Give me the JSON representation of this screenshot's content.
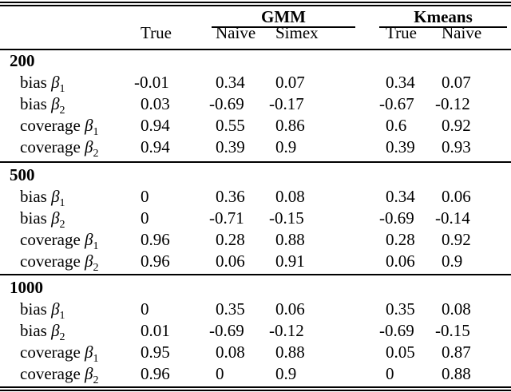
{
  "colors": {
    "background": "#ffffff",
    "text": "#000000",
    "rule": "#000000"
  },
  "table": {
    "header": {
      "groups": [
        {
          "label": "GMM"
        },
        {
          "label": "Kmeans"
        }
      ],
      "subcolumns": [
        "True",
        "Naive",
        "Simex",
        "True",
        "Naive"
      ]
    },
    "sections": [
      {
        "title": "200",
        "rows": [
          {
            "metric": "bias",
            "symbol": "β",
            "subscript": "1",
            "values": [
              "-0.01",
              "0.34",
              "0.07",
              "0.34",
              "0.07"
            ]
          },
          {
            "metric": "bias",
            "symbol": "β",
            "subscript": "2",
            "values": [
              "0.03",
              "-0.69",
              "-0.17",
              "-0.67",
              "-0.12"
            ]
          },
          {
            "metric": "coverage",
            "symbol": "β",
            "subscript": "1",
            "values": [
              "0.94",
              "0.55",
              "0.86",
              "0.6",
              "0.92"
            ]
          },
          {
            "metric": "coverage",
            "symbol": "β",
            "subscript": "2",
            "values": [
              "0.94",
              "0.39",
              "0.9",
              "0.39",
              "0.93"
            ]
          }
        ]
      },
      {
        "title": "500",
        "rows": [
          {
            "metric": "bias",
            "symbol": "β",
            "subscript": "1",
            "values": [
              "0",
              "0.36",
              "0.08",
              "0.34",
              "0.06"
            ]
          },
          {
            "metric": "bias",
            "symbol": "β",
            "subscript": "2",
            "values": [
              "0",
              "-0.71",
              "-0.15",
              "-0.69",
              "-0.14"
            ]
          },
          {
            "metric": "coverage",
            "symbol": "β",
            "subscript": "1",
            "values": [
              "0.96",
              "0.28",
              "0.88",
              "0.28",
              "0.92"
            ]
          },
          {
            "metric": "coverage",
            "symbol": "β",
            "subscript": "2",
            "values": [
              "0.96",
              "0.06",
              "0.91",
              "0.06",
              "0.9"
            ]
          }
        ]
      },
      {
        "title": "1000",
        "rows": [
          {
            "metric": "bias",
            "symbol": "β",
            "subscript": "1",
            "values": [
              "0",
              "0.35",
              "0.06",
              "0.35",
              "0.08"
            ]
          },
          {
            "metric": "bias",
            "symbol": "β",
            "subscript": "2",
            "values": [
              "0.01",
              "-0.69",
              "-0.12",
              "-0.69",
              "-0.15"
            ]
          },
          {
            "metric": "coverage",
            "symbol": "β",
            "subscript": "1",
            "values": [
              "0.95",
              "0.08",
              "0.88",
              "0.05",
              "0.87"
            ]
          },
          {
            "metric": "coverage",
            "symbol": "β",
            "subscript": "2",
            "values": [
              "0.96",
              "0",
              "0.9",
              "0",
              "0.88"
            ]
          }
        ]
      }
    ]
  }
}
